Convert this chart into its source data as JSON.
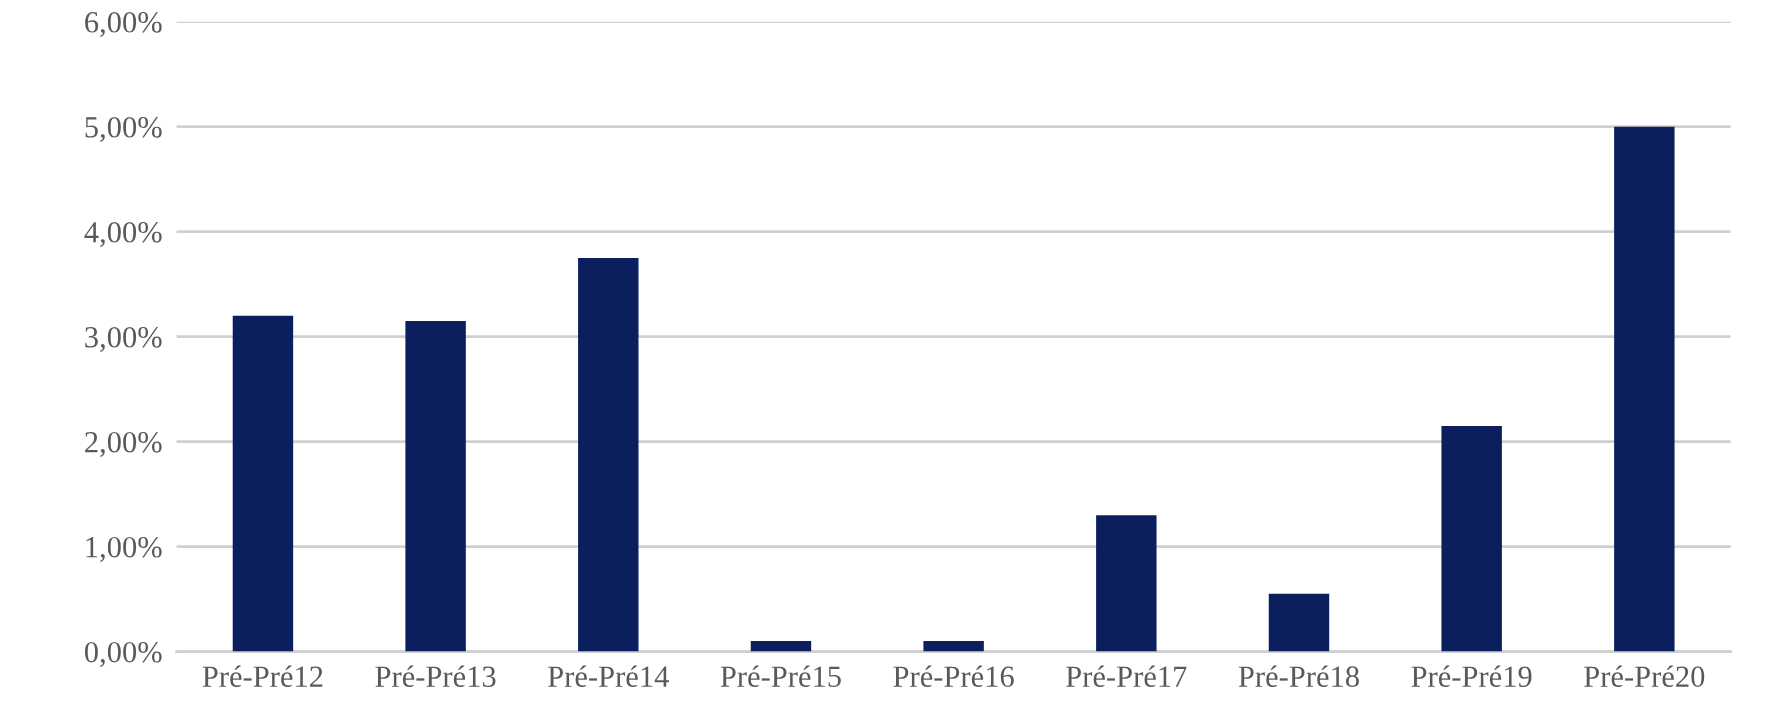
{
  "chart_data": {
    "type": "bar",
    "categories": [
      "Pré-Pré12",
      "Pré-Pré13",
      "Pré-Pré14",
      "Pré-Pré15",
      "Pré-Pré16",
      "Pré-Pré17",
      "Pré-Pré18",
      "Pré-Pré19",
      "Pré-Pré20"
    ],
    "values": [
      3.2,
      3.15,
      3.75,
      0.1,
      0.1,
      1.3,
      0.55,
      2.15,
      5.0
    ],
    "color": "#0b1f5e",
    "ylim": [
      0,
      6
    ],
    "yticks": [
      {
        "value": 0,
        "label": "0,00%"
      },
      {
        "value": 1,
        "label": "1,00%"
      },
      {
        "value": 2,
        "label": "2,00%"
      },
      {
        "value": 3,
        "label": "3,00%"
      },
      {
        "value": 4,
        "label": "4,00%"
      },
      {
        "value": 5,
        "label": "5,00%"
      },
      {
        "value": 6,
        "label": "6,00%"
      }
    ],
    "grid": "y"
  }
}
